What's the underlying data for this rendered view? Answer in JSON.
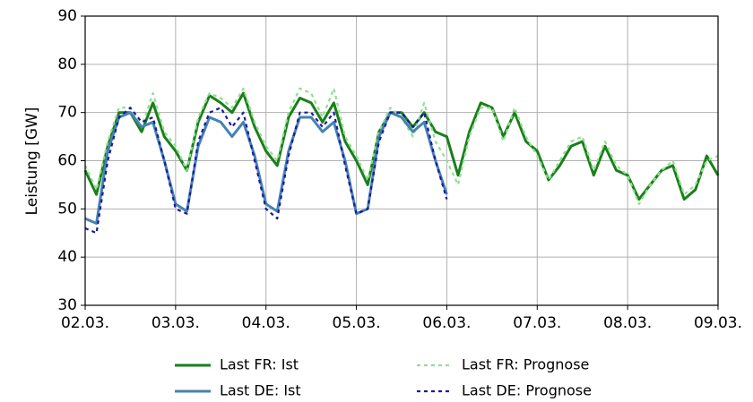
{
  "chart_data": {
    "type": "line",
    "y_label": "Leistung [GW]",
    "x": [
      2,
      2.125,
      2.25,
      2.375,
      2.5,
      2.625,
      2.75,
      2.875,
      3,
      3.125,
      3.25,
      3.375,
      3.5,
      3.625,
      3.75,
      3.875,
      4,
      4.125,
      4.25,
      4.375,
      4.5,
      4.625,
      4.75,
      4.875,
      5,
      5.125,
      5.25,
      5.375,
      5.5,
      5.625,
      5.75,
      5.875,
      6,
      6.125,
      6.25,
      6.375,
      6.5,
      6.625,
      6.75,
      6.875,
      7,
      7.125,
      7.25,
      7.375,
      7.5,
      7.625,
      7.75,
      7.875,
      8,
      8.125,
      8.25,
      8.375,
      8.5,
      8.625,
      8.75,
      8.875,
      9
    ],
    "xlim": [
      2,
      9
    ],
    "xticks": [
      {
        "value": 2,
        "label": "02.03."
      },
      {
        "value": 3,
        "label": "03.03."
      },
      {
        "value": 4,
        "label": "04.03."
      },
      {
        "value": 5,
        "label": "05.03."
      },
      {
        "value": 6,
        "label": "06.03."
      },
      {
        "value": 7,
        "label": "07.03."
      },
      {
        "value": 8,
        "label": "08.03."
      },
      {
        "value": 9,
        "label": "09.03."
      }
    ],
    "ylim": [
      30,
      90
    ],
    "yticks": [
      30,
      40,
      50,
      60,
      70,
      80,
      90
    ],
    "grid": true,
    "legend": "bottom",
    "series": [
      {
        "name": "Last FR: Ist",
        "color": "#1a7f1a",
        "style": "solid",
        "values": [
          58,
          53,
          63,
          70,
          70,
          66,
          72,
          65,
          62,
          58,
          68,
          73.5,
          72,
          70,
          74,
          67,
          62,
          59,
          69,
          73,
          72,
          68,
          72,
          64,
          60,
          55,
          66,
          70,
          70,
          67,
          70,
          66,
          65,
          57,
          66,
          72,
          71,
          65,
          70,
          64,
          62,
          56,
          59,
          63,
          64,
          57,
          63,
          58,
          57,
          52,
          55,
          58,
          59,
          52,
          54,
          61,
          57
        ]
      },
      {
        "name": "Last FR: Prognose",
        "color": "#90e090",
        "style": "dashed",
        "values": [
          59,
          54,
          64,
          71,
          71,
          67,
          74,
          66,
          63,
          58,
          69,
          74,
          73,
          71,
          75,
          68,
          63,
          60,
          70,
          75,
          74,
          69,
          75,
          65,
          61,
          56,
          66,
          71,
          69,
          65,
          72,
          64,
          60,
          55,
          65,
          71,
          71,
          64,
          71,
          65,
          61,
          56,
          60,
          64,
          65,
          58,
          64,
          59,
          57,
          51,
          55,
          58,
          60,
          53,
          55,
          60,
          61
        ]
      },
      {
        "name": "Last DE: Ist",
        "color": "#4682b4",
        "style": "solid",
        "values": [
          48,
          47,
          62,
          69,
          70,
          67,
          68,
          60,
          51,
          49.5,
          63,
          69,
          68,
          65,
          68,
          61,
          51,
          49.5,
          62,
          69,
          69,
          66,
          68,
          60,
          49,
          50,
          65,
          70,
          69,
          66,
          68,
          60,
          53,
          null,
          null,
          null,
          null,
          null,
          null,
          null,
          null,
          null,
          null,
          null,
          null,
          null,
          null,
          null,
          null,
          null,
          null,
          null,
          null,
          null,
          null,
          null,
          null
        ]
      },
      {
        "name": "Last DE: Prognose",
        "color": "#1a1aa0",
        "style": "dashed",
        "values": [
          46,
          45,
          60,
          69,
          71,
          68,
          69,
          60,
          50,
          49,
          64,
          70,
          71,
          67,
          70,
          60,
          50,
          48,
          61,
          70,
          70,
          67,
          70,
          59,
          49,
          50,
          64,
          70,
          70,
          67,
          70,
          60,
          52,
          null,
          null,
          null,
          null,
          null,
          null,
          null,
          null,
          null,
          null,
          null,
          null,
          null,
          null,
          null,
          null,
          null,
          null,
          null,
          null,
          null,
          null,
          null,
          null
        ]
      }
    ]
  }
}
